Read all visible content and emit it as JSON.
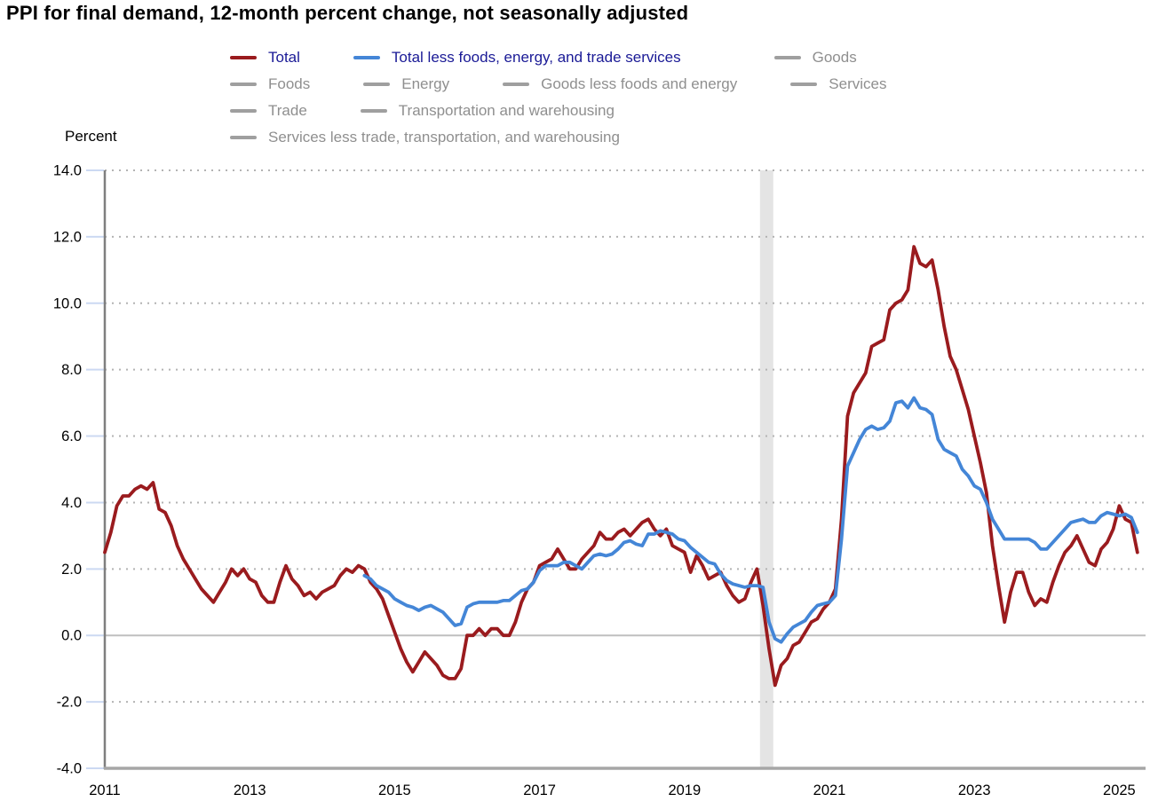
{
  "title": "PPI for final demand, 12-month percent change, not seasonally adjusted",
  "y_axis_label": "Percent",
  "colors": {
    "total": "#9a1b1e",
    "core": "#4486d7",
    "inactive_series": "#9f9f9f",
    "active_label": "#1a1a96",
    "inactive_label": "#8f8f8f",
    "recession_band": "#e4e4e4",
    "grid_dotted": "#b3b3b3",
    "zero_line": "#bfbfbf",
    "y_axis_line": "#7f7f7f",
    "x_axis_line": "#a6a6a6",
    "tick": "#ccd9f2",
    "axis_text": "#000000"
  },
  "legend": {
    "rows": [
      [
        {
          "label": "Total",
          "series": "total",
          "active": true
        },
        {
          "label": "Total less foods, energy, and trade services",
          "series": "core",
          "active": true
        },
        {
          "label": "Goods",
          "series": null,
          "active": false
        }
      ],
      [
        {
          "label": "Foods",
          "series": null,
          "active": false
        },
        {
          "label": "Energy",
          "series": null,
          "active": false
        },
        {
          "label": "Goods less foods and energy",
          "series": null,
          "active": false
        },
        {
          "label": "Services",
          "series": null,
          "active": false
        }
      ],
      [
        {
          "label": "Trade",
          "series": null,
          "active": false
        },
        {
          "label": "Transportation and warehousing",
          "series": null,
          "active": false
        }
      ],
      [
        {
          "label": "Services less trade, transportation, and warehousing",
          "series": null,
          "active": false
        }
      ]
    ]
  },
  "chart_data": {
    "type": "line",
    "title": "PPI for final demand, 12-month percent change, not seasonally adjusted",
    "xlabel": "",
    "ylabel": "Percent",
    "ylim": [
      -4.0,
      14.0
    ],
    "grid": "horizontal dotted",
    "legend_position": "top",
    "x_unit": "month",
    "x_start": "2011-01",
    "x_end": "2025-04",
    "recession_band": {
      "start": "2020-02",
      "end": "2020-04"
    },
    "yticks": [
      {
        "label": "14.0",
        "value": 14
      },
      {
        "label": "12.0",
        "value": 12
      },
      {
        "label": "10.0",
        "value": 10
      },
      {
        "label": "8.0",
        "value": 8
      },
      {
        "label": "6.0",
        "value": 6
      },
      {
        "label": "4.0",
        "value": 4
      },
      {
        "label": "2.0",
        "value": 2
      },
      {
        "label": "0.0",
        "value": 0
      },
      {
        "label": "-2.0",
        "value": -2
      },
      {
        "label": "-4.0",
        "value": -4
      }
    ],
    "xticks": [
      {
        "label": "2011",
        "month_index": 0
      },
      {
        "label": "2013",
        "month_index": 24
      },
      {
        "label": "2015",
        "month_index": 48
      },
      {
        "label": "2017",
        "month_index": 72
      },
      {
        "label": "2019",
        "month_index": 96
      },
      {
        "label": "2021",
        "month_index": 120
      },
      {
        "label": "2023",
        "month_index": 144
      },
      {
        "label": "2025",
        "month_index": 168
      }
    ],
    "series": [
      {
        "name": "Total",
        "color_key": "total",
        "start": "2011-01",
        "values": [
          2.5,
          3.1,
          3.9,
          4.2,
          4.2,
          4.4,
          4.5,
          4.4,
          4.6,
          3.8,
          3.7,
          3.3,
          2.7,
          2.3,
          2.0,
          1.7,
          1.4,
          1.2,
          1.0,
          1.3,
          1.6,
          2.0,
          1.8,
          2.0,
          1.7,
          1.6,
          1.2,
          1.0,
          1.0,
          1.6,
          2.1,
          1.7,
          1.5,
          1.2,
          1.3,
          1.1,
          1.3,
          1.4,
          1.5,
          1.8,
          2.0,
          1.9,
          2.1,
          2.0,
          1.6,
          1.4,
          1.1,
          0.6,
          0.1,
          -0.4,
          -0.8,
          -1.1,
          -0.8,
          -0.5,
          -0.7,
          -0.9,
          -1.2,
          -1.3,
          -1.3,
          -1.0,
          0.0,
          0.0,
          0.2,
          0.0,
          0.2,
          0.2,
          0.0,
          0.0,
          0.4,
          1.0,
          1.4,
          1.6,
          2.1,
          2.2,
          2.3,
          2.6,
          2.3,
          2.0,
          2.0,
          2.3,
          2.5,
          2.7,
          3.1,
          2.9,
          2.9,
          3.1,
          3.2,
          3.0,
          3.2,
          3.4,
          3.5,
          3.2,
          3.0,
          3.2,
          2.7,
          2.6,
          2.5,
          1.9,
          2.4,
          2.1,
          1.7,
          1.8,
          1.9,
          1.5,
          1.2,
          1.0,
          1.1,
          1.6,
          2.0,
          0.9,
          -0.4,
          -1.5,
          -0.9,
          -0.7,
          -0.3,
          -0.2,
          0.1,
          0.4,
          0.5,
          0.8,
          1.0,
          1.4,
          3.5,
          6.6,
          7.3,
          7.6,
          7.9,
          8.7,
          8.8,
          8.9,
          9.8,
          10.0,
          10.1,
          10.4,
          11.7,
          11.2,
          11.1,
          11.3,
          10.4,
          9.3,
          8.4,
          8.0,
          7.4,
          6.8,
          6.0,
          5.2,
          4.3,
          2.7,
          1.5,
          0.4,
          1.3,
          1.9,
          1.9,
          1.3,
          0.9,
          1.1,
          1.0,
          1.6,
          2.1,
          2.5,
          2.7,
          3.0,
          2.6,
          2.2,
          2.1,
          2.6,
          2.8,
          3.2,
          3.9,
          3.5,
          3.4,
          2.5
        ]
      },
      {
        "name": "Total less foods, energy, and trade services",
        "color_key": "core",
        "start": "2014-08",
        "values": [
          1.8,
          1.7,
          1.5,
          1.4,
          1.3,
          1.1,
          1.0,
          0.9,
          0.85,
          0.75,
          0.85,
          0.9,
          0.8,
          0.7,
          0.5,
          0.3,
          0.35,
          0.85,
          0.95,
          1.0,
          1.0,
          1.0,
          1.0,
          1.05,
          1.05,
          1.2,
          1.35,
          1.4,
          1.6,
          1.95,
          2.1,
          2.1,
          2.1,
          2.2,
          2.2,
          2.1,
          2.0,
          2.2,
          2.4,
          2.45,
          2.4,
          2.45,
          2.6,
          2.8,
          2.85,
          2.75,
          2.7,
          3.05,
          3.05,
          3.15,
          3.1,
          3.05,
          2.9,
          2.85,
          2.65,
          2.5,
          2.35,
          2.2,
          2.15,
          1.85,
          1.65,
          1.55,
          1.5,
          1.45,
          1.5,
          1.5,
          1.45,
          0.4,
          -0.1,
          -0.2,
          0.05,
          0.25,
          0.35,
          0.45,
          0.7,
          0.9,
          0.95,
          1.0,
          1.2,
          2.9,
          5.1,
          5.5,
          5.9,
          6.2,
          6.3,
          6.2,
          6.25,
          6.45,
          7.0,
          7.05,
          6.85,
          7.15,
          6.85,
          6.8,
          6.65,
          5.9,
          5.6,
          5.5,
          5.4,
          5.0,
          4.8,
          4.5,
          4.4,
          4.0,
          3.5,
          3.2,
          2.9,
          2.9,
          2.9,
          2.9,
          2.9,
          2.8,
          2.6,
          2.6,
          2.8,
          3.0,
          3.2,
          3.4,
          3.45,
          3.5,
          3.4,
          3.4,
          3.6,
          3.7,
          3.65,
          3.6,
          3.65,
          3.55,
          3.1
        ]
      }
    ]
  }
}
